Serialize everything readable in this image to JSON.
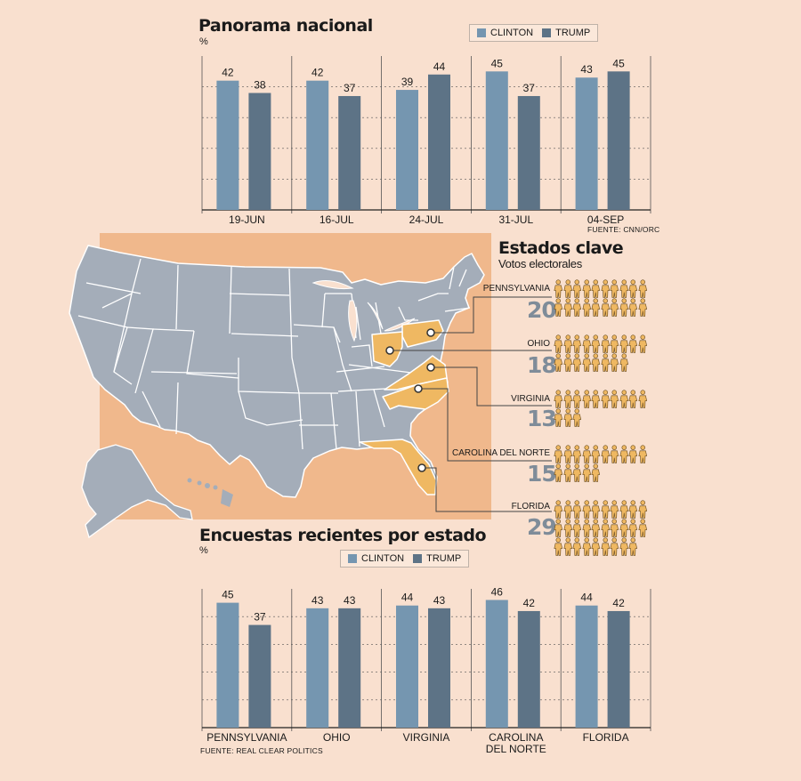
{
  "national": {
    "title": "Panorama nacional",
    "unit": "%",
    "source": "FUENTE: CNN/ORC"
  },
  "states_poll": {
    "title": "Encuestas recientes por estado",
    "unit": "%",
    "source": "FUENTE: REAL CLEAR POLITICS"
  },
  "legend": {
    "clinton": "CLINTON",
    "trump": "TRUMP"
  },
  "colors": {
    "clinton": "#7596b0",
    "trump": "#5d7386",
    "background": "#f9e0cf",
    "map_states": "#a4adb9",
    "swing_states": "#efb862",
    "map_backdrop": "#f0b88c",
    "person": "#efb862"
  },
  "key_states": {
    "title": "Estados clave",
    "subtitle": "Votos electorales",
    "states": [
      {
        "name": "PENNSYLVANIA",
        "votes": "20"
      },
      {
        "name": "OHIO",
        "votes": "18"
      },
      {
        "name": "VIRGINIA",
        "votes": "13"
      },
      {
        "name": "CAROLINA DEL NORTE",
        "votes": "15"
      },
      {
        "name": "FLORIDA",
        "votes": "29"
      }
    ]
  },
  "chart_data": [
    {
      "type": "bar",
      "title": "Panorama nacional",
      "ylabel": "%",
      "categories": [
        "19-JUN",
        "16-JUL",
        "24-JUL",
        "31-JUL",
        "04-SEP"
      ],
      "series": [
        {
          "name": "CLINTON",
          "values": [
            42,
            42,
            39,
            45,
            43
          ]
        },
        {
          "name": "TRUMP",
          "values": [
            38,
            37,
            44,
            37,
            45
          ]
        }
      ],
      "ylim": [
        0,
        50
      ],
      "grid": true
    },
    {
      "type": "bar",
      "title": "Encuestas recientes por estado",
      "ylabel": "%",
      "categories": [
        "PENNSYLVANIA",
        "OHIO",
        "VIRGINIA",
        "CAROLINA DEL NORTE",
        "FLORIDA"
      ],
      "category_lines": [
        [
          "PENNSYLVANIA"
        ],
        [
          "OHIO"
        ],
        [
          "VIRGINIA"
        ],
        [
          "CAROLINA",
          "DEL NORTE"
        ],
        [
          "FLORIDA"
        ]
      ],
      "series": [
        {
          "name": "CLINTON",
          "values": [
            45,
            43,
            44,
            46,
            44
          ]
        },
        {
          "name": "TRUMP",
          "values": [
            37,
            43,
            43,
            42,
            42
          ]
        }
      ],
      "ylim": [
        0,
        50
      ],
      "grid": true
    }
  ]
}
